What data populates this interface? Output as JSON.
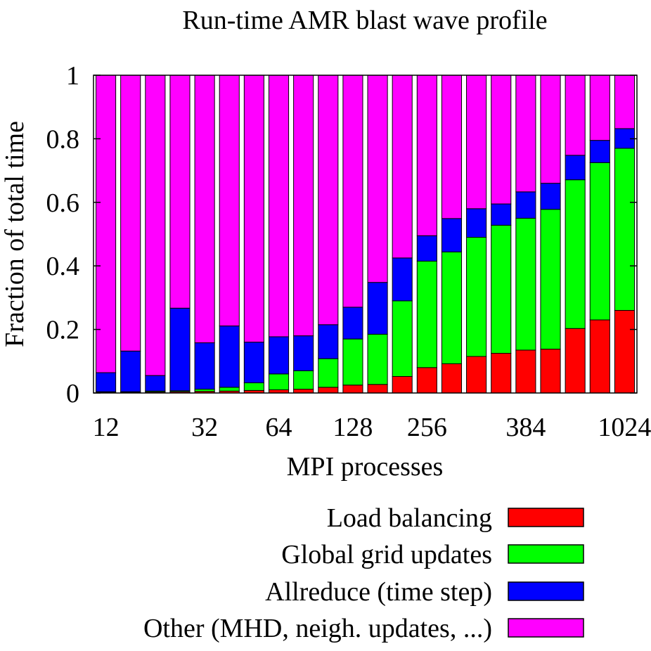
{
  "chart_data": {
    "type": "bar",
    "stacked": true,
    "title": "Run-time AMR blast wave profile",
    "xlabel": "MPI processes",
    "ylabel": "Fraction of total time",
    "ylim": [
      0,
      1
    ],
    "yticks": [
      0,
      0.2,
      0.4,
      0.6,
      0.8,
      1
    ],
    "ytick_labels": [
      "0",
      "0.2",
      "0.4",
      "0.6",
      "0.8",
      "1"
    ],
    "xtick_labels": [
      {
        "label": "12",
        "bar_index": 0
      },
      {
        "label": "32",
        "bar_index": 4
      },
      {
        "label": "64",
        "bar_index": 7
      },
      {
        "label": "128",
        "bar_index": 10
      },
      {
        "label": "256",
        "bar_index": 13
      },
      {
        "label": "384",
        "bar_index": 17
      },
      {
        "label": "1024",
        "bar_index": 21
      }
    ],
    "bar_count": 22,
    "legend_position": "below-right",
    "series": [
      {
        "name": "Load balancing",
        "color": "#ff0000",
        "values": [
          0.002,
          0.002,
          0.003,
          0.004,
          0.005,
          0.006,
          0.008,
          0.01,
          0.012,
          0.018,
          0.025,
          0.027,
          0.052,
          0.08,
          0.092,
          0.115,
          0.125,
          0.135,
          0.138,
          0.203,
          0.23,
          0.26
        ]
      },
      {
        "name": "Global grid updates",
        "color": "#00ff00",
        "values": [
          0.002,
          0.002,
          0.003,
          0.003,
          0.007,
          0.012,
          0.024,
          0.05,
          0.058,
          0.09,
          0.145,
          0.158,
          0.238,
          0.335,
          0.352,
          0.375,
          0.403,
          0.415,
          0.44,
          0.468,
          0.495,
          0.51
        ]
      },
      {
        "name": "Allreduce (time step)",
        "color": "#0000ff",
        "values": [
          0.06,
          0.128,
          0.049,
          0.26,
          0.146,
          0.193,
          0.128,
          0.117,
          0.11,
          0.107,
          0.1,
          0.163,
          0.135,
          0.08,
          0.105,
          0.09,
          0.067,
          0.083,
          0.082,
          0.077,
          0.07,
          0.062
        ]
      },
      {
        "name": "Other (MHD, neigh. updates, ...)",
        "color": "#ff00ff",
        "values": [
          0.936,
          0.868,
          0.945,
          0.733,
          0.842,
          0.789,
          0.84,
          0.823,
          0.82,
          0.785,
          0.73,
          0.652,
          0.575,
          0.505,
          0.451,
          0.42,
          0.405,
          0.367,
          0.34,
          0.252,
          0.205,
          0.168
        ]
      }
    ]
  }
}
